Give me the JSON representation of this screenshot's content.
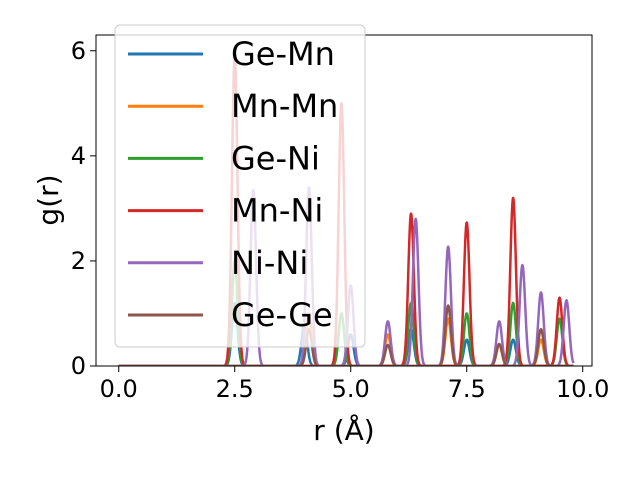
{
  "chart_data": {
    "type": "line",
    "xlabel": "r (Å)",
    "ylabel": "g(r)",
    "xlim": [
      -0.49,
      10.2
    ],
    "ylim": [
      0,
      6.3
    ],
    "xticks": [
      "0.0",
      "2.5",
      "5.0",
      "7.5",
      "10.0"
    ],
    "yticks": [
      "0",
      "2",
      "4",
      "6"
    ],
    "legend_position": "top-left",
    "r_max": 9.8,
    "peak_width": 0.06,
    "series": [
      {
        "name": "Ge-Mn",
        "color": "#1f77b4",
        "peaks": [
          [
            2.5,
            1.2
          ],
          [
            4.0,
            0.8
          ],
          [
            5.0,
            0.6
          ],
          [
            6.3,
            0.7
          ],
          [
            7.5,
            0.5
          ],
          [
            8.5,
            0.5
          ]
        ]
      },
      {
        "name": "Mn-Mn",
        "color": "#ff7f0e",
        "peaks": [
          [
            4.1,
            1.0
          ],
          [
            5.8,
            0.6
          ],
          [
            7.1,
            0.9
          ],
          [
            8.2,
            0.4
          ],
          [
            9.1,
            0.5
          ]
        ]
      },
      {
        "name": "Ge-Ni",
        "color": "#2ca02c",
        "peaks": [
          [
            2.5,
            2.0
          ],
          [
            4.8,
            1.0
          ],
          [
            6.3,
            1.2
          ],
          [
            7.5,
            1.0
          ],
          [
            8.5,
            1.2
          ],
          [
            9.5,
            0.9
          ]
        ]
      },
      {
        "name": "Mn-Ni",
        "color": "#d62728",
        "peaks": [
          [
            2.5,
            5.9
          ],
          [
            4.8,
            5.0
          ],
          [
            6.3,
            2.9
          ],
          [
            7.5,
            2.73
          ],
          [
            8.5,
            3.2
          ],
          [
            9.5,
            1.3
          ]
        ]
      },
      {
        "name": "Ni-Ni",
        "color": "#9467bd",
        "peaks": [
          [
            2.9,
            3.35
          ],
          [
            4.1,
            3.4
          ],
          [
            5.0,
            1.53
          ],
          [
            5.8,
            0.85
          ],
          [
            6.4,
            2.8
          ],
          [
            7.1,
            2.27
          ],
          [
            8.2,
            0.85
          ],
          [
            8.7,
            1.92
          ],
          [
            9.1,
            1.4
          ],
          [
            9.65,
            1.25
          ]
        ]
      },
      {
        "name": "Ge-Ge",
        "color": "#8c564b",
        "peaks": [
          [
            4.1,
            0.7
          ],
          [
            5.8,
            0.4
          ],
          [
            7.1,
            1.15
          ],
          [
            8.2,
            0.42
          ],
          [
            9.1,
            0.7
          ]
        ]
      }
    ]
  }
}
